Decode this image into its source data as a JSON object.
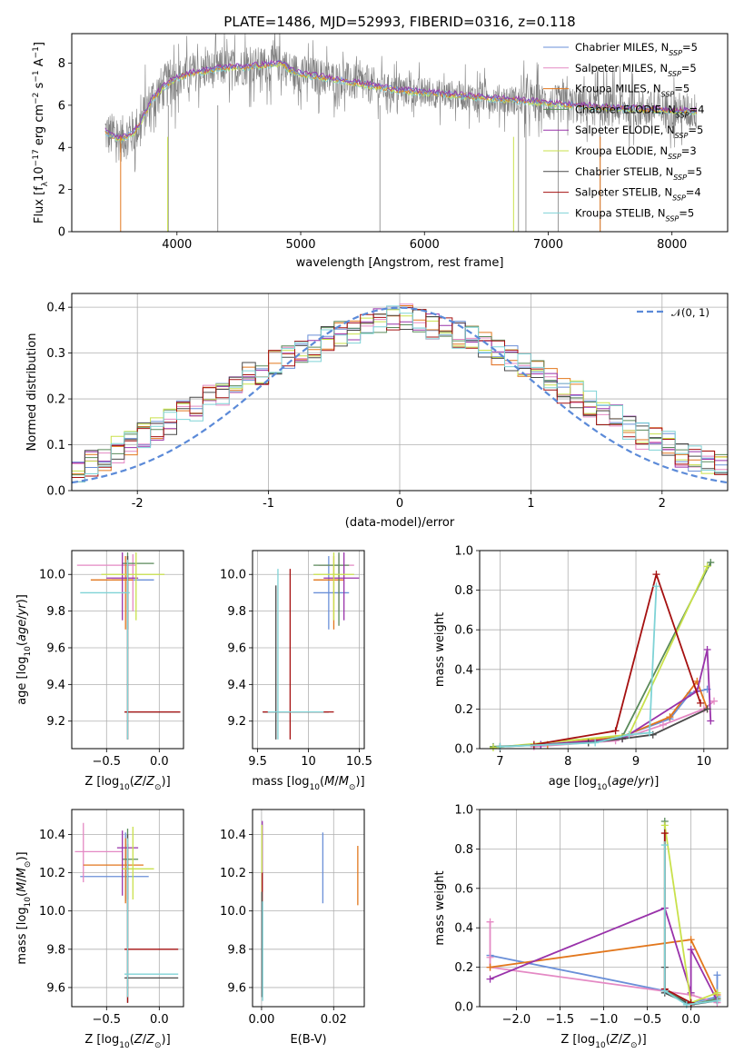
{
  "colors": {
    "chabrier_miles": "#6a8fd8",
    "salpeter_miles": "#e489c4",
    "kroupa_miles": "#e2771d",
    "chabrier_elodie": "#5a8a5a",
    "salpeter_elodie": "#9932aa",
    "kroupa_elodie": "#c9e14b",
    "chabrier_stelib": "#4a4a4a",
    "salpeter_stelib": "#a51010",
    "kroupa_stelib": "#7fd3d6",
    "data": "#7f7f7f",
    "gaussian": "#5b8ad8"
  },
  "chart_data": [
    {
      "id": "spectrum",
      "type": "line",
      "title": "PLATE=1486, MJD=52993, FIBERID=0316, z=0.118",
      "xlabel": "wavelength [Angstrom, rest frame]",
      "ylabel": "Flux [f_λ 10^-17 erg cm^-2 s^-1 A^-1]",
      "xlim": [
        3150,
        8450
      ],
      "ylim": [
        0,
        9.4
      ],
      "xticks": [
        4000,
        5000,
        6000,
        7000,
        8000
      ],
      "yticks": [
        0,
        2,
        4,
        6,
        8
      ],
      "grid": false,
      "legend_position": "top-right",
      "legend": [
        {
          "label": "Chabrier MILES, N_SSP=5",
          "color": "#6a8fd8"
        },
        {
          "label": "Salpeter MILES, N_SSP=5",
          "color": "#e489c4"
        },
        {
          "label": "Kroupa MILES, N_SSP=5",
          "color": "#e2771d"
        },
        {
          "label": "Chabrier ELODIE, N_SSP=4",
          "color": "#5a8a5a"
        },
        {
          "label": "Salpeter ELODIE, N_SSP=5",
          "color": "#9932aa"
        },
        {
          "label": "Kroupa ELODIE, N_SSP=3",
          "color": "#c9e14b"
        },
        {
          "label": "Chabrier STELIB, N_SSP=5",
          "color": "#4a4a4a"
        },
        {
          "label": "Salpeter STELIB, N_SSP=4",
          "color": "#a51010"
        },
        {
          "label": "Kroupa STELIB, N_SSP=5",
          "color": "#7fd3d6"
        }
      ],
      "model_continuum": {
        "x": [
          3400,
          3450,
          3550,
          3650,
          3700,
          3800,
          3900,
          4000,
          4100,
          4200,
          4400,
          4500,
          4700,
          4850,
          4900,
          5000,
          5200,
          5400,
          5600,
          5800,
          6000,
          6200,
          6400,
          6600,
          6800,
          7000,
          7200,
          7400,
          7600,
          7800,
          8000,
          8200
        ],
        "y": [
          4.9,
          4.6,
          4.4,
          4.7,
          5.1,
          6.3,
          6.9,
          7.3,
          7.5,
          7.6,
          7.8,
          7.8,
          7.9,
          8.0,
          7.7,
          7.5,
          7.3,
          7.1,
          6.9,
          6.7,
          6.6,
          6.5,
          6.4,
          6.3,
          6.2,
          6.1,
          6.0,
          5.9,
          5.85,
          5.8,
          5.75,
          5.7
        ]
      }
    },
    {
      "id": "residuals",
      "type": "histogram",
      "xlabel": "(data-model)/error",
      "ylabel": "Normed distribution",
      "xlim": [
        -2.5,
        2.5
      ],
      "ylim": [
        0,
        0.43
      ],
      "xticks": [
        -2,
        -1,
        0,
        1,
        2
      ],
      "yticks": [
        0.0,
        0.1,
        0.2,
        0.3,
        0.4
      ],
      "grid": true,
      "legend": [
        {
          "label": "𝒩(0, 1)",
          "color": "#5b8ad8",
          "style": "dashed"
        }
      ],
      "legend_position": "top-right",
      "bin_width": 0.1,
      "bin_start": -2.5,
      "series_center": [
        0.045,
        0.06,
        0.07,
        0.09,
        0.1,
        0.12,
        0.14,
        0.15,
        0.17,
        0.18,
        0.2,
        0.21,
        0.23,
        0.25,
        0.26,
        0.28,
        0.29,
        0.3,
        0.31,
        0.33,
        0.34,
        0.35,
        0.36,
        0.37,
        0.38,
        0.38,
        0.37,
        0.36,
        0.35,
        0.34,
        0.33,
        0.32,
        0.3,
        0.29,
        0.27,
        0.26,
        0.24,
        0.22,
        0.21,
        0.19,
        0.17,
        0.16,
        0.14,
        0.12,
        0.11,
        0.1,
        0.08,
        0.07,
        0.06,
        0.05
      ]
    },
    {
      "id": "age-vs-Z",
      "type": "scatter",
      "xlabel": "Z [log10(Z/Z⊙)]",
      "ylabel": "age  [log10(age/yr)]",
      "xlim": [
        -0.83,
        0.23
      ],
      "ylim": [
        9.05,
        10.13
      ],
      "xticks": [
        -0.5,
        0.0
      ],
      "xticklabels": [
        "−0.5",
        "0.0"
      ],
      "yticks": [
        9.2,
        9.4,
        9.6,
        9.8,
        10.0
      ],
      "grid": true,
      "points": [
        {
          "x": -0.3,
          "y": 9.97,
          "xlo": -0.45,
          "xhi": -0.05,
          "ylo": 9.7,
          "yhi": 10.1,
          "color": "#6a8fd8"
        },
        {
          "x": -0.25,
          "y": 10.05,
          "xlo": -0.78,
          "xhi": -0.22,
          "ylo": 9.8,
          "yhi": 10.11,
          "color": "#e489c4"
        },
        {
          "x": -0.32,
          "y": 9.97,
          "xlo": -0.65,
          "xhi": -0.25,
          "ylo": 9.7,
          "yhi": 10.1,
          "color": "#e2771d"
        },
        {
          "x": -0.3,
          "y": 10.06,
          "xlo": -0.35,
          "xhi": -0.05,
          "ylo": 9.7,
          "yhi": 10.12,
          "color": "#5a8a5a"
        },
        {
          "x": -0.35,
          "y": 9.98,
          "xlo": -0.5,
          "xhi": -0.2,
          "ylo": 9.75,
          "yhi": 10.12,
          "color": "#9932aa"
        },
        {
          "x": -0.22,
          "y": 10.0,
          "xlo": -0.55,
          "xhi": 0.05,
          "ylo": 9.75,
          "yhi": 10.12,
          "color": "#c9e14b"
        },
        {
          "x": -0.3,
          "y": 9.25,
          "xlo": -0.33,
          "xhi": 0.2,
          "ylo": 9.1,
          "yhi": 10.1,
          "color": "#4a4a4a"
        },
        {
          "x": -0.3,
          "y": 9.25,
          "xlo": -0.33,
          "xhi": 0.2,
          "ylo": 9.1,
          "yhi": 10.05,
          "color": "#a51010"
        },
        {
          "x": -0.3,
          "y": 9.9,
          "xlo": -0.75,
          "xhi": -0.28,
          "ylo": 9.1,
          "yhi": 10.08,
          "color": "#7fd3d6"
        }
      ]
    },
    {
      "id": "age-vs-mass",
      "type": "scatter",
      "xlabel": "mass [log10(M/M⊙)]",
      "ylabel": "",
      "xlim": [
        9.45,
        10.55
      ],
      "ylim": [
        9.05,
        10.13
      ],
      "xticks": [
        9.5,
        10.0,
        10.5
      ],
      "yticks": [
        9.2,
        9.4,
        9.6,
        9.8,
        10.0
      ],
      "grid": true,
      "points": [
        {
          "x": 10.2,
          "y": 9.9,
          "xlo": 10.05,
          "xhi": 10.4,
          "ylo": 9.7,
          "yhi": 10.1,
          "color": "#6a8fd8"
        },
        {
          "x": 10.3,
          "y": 10.05,
          "xlo": 10.1,
          "xhi": 10.45,
          "ylo": 9.8,
          "yhi": 10.11,
          "color": "#e489c4"
        },
        {
          "x": 10.25,
          "y": 9.97,
          "xlo": 10.05,
          "xhi": 10.35,
          "ylo": 9.7,
          "yhi": 10.1,
          "color": "#e2771d"
        },
        {
          "x": 10.3,
          "y": 10.05,
          "xlo": 10.05,
          "xhi": 10.4,
          "ylo": 9.72,
          "yhi": 10.12,
          "color": "#5a8a5a"
        },
        {
          "x": 10.35,
          "y": 9.98,
          "xlo": 10.15,
          "xhi": 10.5,
          "ylo": 9.75,
          "yhi": 10.12,
          "color": "#9932aa"
        },
        {
          "x": 10.25,
          "y": 10.0,
          "xlo": 10.05,
          "xhi": 10.45,
          "ylo": 9.75,
          "yhi": 10.12,
          "color": "#c9e14b"
        },
        {
          "x": 9.68,
          "y": 9.25,
          "xlo": 9.55,
          "xhi": 10.2,
          "ylo": 9.1,
          "yhi": 9.94,
          "color": "#4a4a4a"
        },
        {
          "x": 9.82,
          "y": 9.25,
          "xlo": 9.55,
          "xhi": 10.25,
          "ylo": 9.1,
          "yhi": 10.03,
          "color": "#a51010"
        },
        {
          "x": 9.7,
          "y": 9.25,
          "xlo": 9.6,
          "xhi": 10.15,
          "ylo": 9.1,
          "yhi": 10.03,
          "color": "#7fd3d6"
        }
      ]
    },
    {
      "id": "weight-vs-age",
      "type": "line",
      "xlabel": "age  [log10(age/yr)]",
      "ylabel": "mass weight",
      "xlim": [
        6.7,
        10.35
      ],
      "ylim": [
        0,
        1.0
      ],
      "xticks": [
        7,
        8,
        9,
        10
      ],
      "yticks": [
        0.0,
        0.2,
        0.4,
        0.6,
        0.8,
        1.0
      ],
      "grid": true,
      "series": [
        {
          "color": "#6a8fd8",
          "x": [
            7.6,
            8.7,
            9.5,
            9.8,
            10.05
          ],
          "y": [
            0.02,
            0.05,
            0.15,
            0.28,
            0.3
          ]
        },
        {
          "color": "#e489c4",
          "x": [
            7.5,
            8.7,
            9.4,
            10.0,
            10.15
          ],
          "y": [
            0.01,
            0.04,
            0.12,
            0.2,
            0.24
          ]
        },
        {
          "color": "#e2771d",
          "x": [
            7.7,
            8.8,
            9.5,
            9.9,
            10.05
          ],
          "y": [
            0.02,
            0.06,
            0.16,
            0.34,
            0.2
          ]
        },
        {
          "color": "#5a8a5a",
          "x": [
            6.9,
            8.3,
            8.8,
            10.1
          ],
          "y": [
            0.01,
            0.03,
            0.06,
            0.94
          ]
        },
        {
          "color": "#9932aa",
          "x": [
            7.6,
            8.8,
            9.9,
            10.05,
            10.1
          ],
          "y": [
            0.02,
            0.05,
            0.29,
            0.5,
            0.14
          ]
        },
        {
          "color": "#c9e14b",
          "x": [
            6.9,
            8.9,
            10.05
          ],
          "y": [
            0.005,
            0.07,
            0.92
          ]
        },
        {
          "color": "#4a4a4a",
          "x": [
            7.0,
            8.3,
            8.8,
            9.25,
            10.05
          ],
          "y": [
            0.01,
            0.03,
            0.05,
            0.07,
            0.2
          ]
        },
        {
          "color": "#a51010",
          "x": [
            7.5,
            8.7,
            9.3,
            9.95
          ],
          "y": [
            0.02,
            0.09,
            0.88,
            0.23
          ]
        },
        {
          "color": "#7fd3d6",
          "x": [
            7.0,
            8.4,
            8.9,
            9.2,
            9.3
          ],
          "y": [
            0.01,
            0.03,
            0.07,
            0.08,
            0.82
          ]
        }
      ]
    },
    {
      "id": "mass-vs-Z",
      "type": "scatter",
      "xlabel": "Z [log10(Z/Z⊙)]",
      "ylabel": "mass [log10(M/M⊙)]",
      "xlim": [
        -0.83,
        0.23
      ],
      "ylim": [
        9.5,
        10.53
      ],
      "xticks": [
        -0.5,
        0.0
      ],
      "xticklabels": [
        "−0.5",
        "0.0"
      ],
      "yticks": [
        9.6,
        9.8,
        10.0,
        10.2,
        10.4
      ],
      "grid": true,
      "points": [
        {
          "x": -0.32,
          "y": 10.18,
          "xlo": -0.75,
          "xhi": -0.1,
          "ylo": 10.05,
          "yhi": 10.41,
          "color": "#6a8fd8"
        },
        {
          "x": -0.72,
          "y": 10.31,
          "xlo": -0.8,
          "xhi": -0.35,
          "ylo": 10.15,
          "yhi": 10.46,
          "color": "#e489c4"
        },
        {
          "x": -0.32,
          "y": 10.24,
          "xlo": -0.72,
          "xhi": -0.15,
          "ylo": 10.04,
          "yhi": 10.38,
          "color": "#e2771d"
        },
        {
          "x": -0.3,
          "y": 10.27,
          "xlo": -0.35,
          "xhi": -0.2,
          "ylo": 10.06,
          "yhi": 10.43,
          "color": "#5a8a5a"
        },
        {
          "x": -0.35,
          "y": 10.33,
          "xlo": -0.4,
          "xhi": -0.2,
          "ylo": 10.08,
          "yhi": 10.42,
          "color": "#9932aa"
        },
        {
          "x": -0.25,
          "y": 10.22,
          "xlo": -0.35,
          "xhi": -0.05,
          "ylo": 10.06,
          "yhi": 10.44,
          "color": "#c9e14b"
        },
        {
          "x": -0.3,
          "y": 9.65,
          "xlo": -0.33,
          "xhi": 0.18,
          "ylo": 9.52,
          "yhi": 10.4,
          "color": "#4a4a4a"
        },
        {
          "x": -0.3,
          "y": 9.8,
          "xlo": -0.33,
          "xhi": 0.18,
          "ylo": 9.52,
          "yhi": 10.35,
          "color": "#a51010"
        },
        {
          "x": -0.3,
          "y": 9.67,
          "xlo": -0.33,
          "xhi": 0.18,
          "ylo": 9.55,
          "yhi": 10.38,
          "color": "#7fd3d6"
        }
      ]
    },
    {
      "id": "mass-vs-EBV",
      "type": "scatter",
      "xlabel": "E(B-V)",
      "ylabel": "",
      "xlim": [
        -0.0025,
        0.0285
      ],
      "ylim": [
        9.5,
        10.53
      ],
      "xticks": [
        0.0,
        0.02
      ],
      "xticklabels": [
        "0.00",
        "0.02"
      ],
      "yticks": [
        9.6,
        9.8,
        10.0,
        10.2,
        10.4
      ],
      "grid": true,
      "points": [
        {
          "x": 0.017,
          "y": 10.2,
          "ylo": 10.04,
          "yhi": 10.41,
          "color": "#6a8fd8"
        },
        {
          "x": 0.0267,
          "y": 10.18,
          "ylo": 10.03,
          "yhi": 10.34,
          "color": "#e2771d"
        },
        {
          "x": 0.0002,
          "y": 10.3,
          "ylo": 10.1,
          "yhi": 10.47,
          "color": "#9932aa"
        },
        {
          "x": 0.0001,
          "y": 10.25,
          "ylo": 10.05,
          "yhi": 10.45,
          "color": "#c9e14b"
        },
        {
          "x": 0.0002,
          "y": 10.1,
          "ylo": 10.0,
          "yhi": 10.2,
          "color": "#a51010"
        },
        {
          "x": 0.0001,
          "y": 9.8,
          "ylo": 9.55,
          "yhi": 10.1,
          "color": "#4a4a4a"
        },
        {
          "x": 0.0003,
          "y": 9.75,
          "ylo": 9.53,
          "yhi": 10.05,
          "color": "#7fd3d6"
        }
      ]
    },
    {
      "id": "weight-vs-Z",
      "type": "line",
      "xlabel": "Z [log10(Z/Z⊙)]",
      "ylabel": "mass weight",
      "xlim": [
        -2.42,
        0.42
      ],
      "ylim": [
        0,
        1.0
      ],
      "xticks": [
        -2.0,
        -1.5,
        -1.0,
        -0.5,
        0.0
      ],
      "xticklabels": [
        "−2.0",
        "−1.5",
        "−1.0",
        "−0.5",
        "0.0"
      ],
      "yticks": [
        0.0,
        0.2,
        0.4,
        0.6,
        0.8,
        1.0
      ],
      "grid": true,
      "series": [
        {
          "color": "#6a8fd8",
          "x": [
            -2.3,
            -0.3,
            0.0,
            0.3,
            0.3
          ],
          "y": [
            0.26,
            0.08,
            0.02,
            0.05,
            0.16
          ]
        },
        {
          "color": "#e489c4",
          "x": [
            -2.3,
            -2.3,
            -2.3,
            0.0,
            0.3
          ],
          "y": [
            0.43,
            0.25,
            0.2,
            0.06,
            0.02
          ]
        },
        {
          "color": "#e2771d",
          "x": [
            -2.3,
            0.0,
            0.3
          ],
          "y": [
            0.2,
            0.34,
            0.06
          ]
        },
        {
          "color": "#5a8a5a",
          "x": [
            -0.3,
            -0.3,
            0.0,
            0.3
          ],
          "y": [
            0.94,
            0.08,
            0.01,
            0.04
          ]
        },
        {
          "color": "#9932aa",
          "x": [
            -2.3,
            -0.3,
            0.0,
            0.0,
            0.3
          ],
          "y": [
            0.14,
            0.5,
            0.07,
            0.29,
            0.03
          ]
        },
        {
          "color": "#c9e14b",
          "x": [
            -0.3,
            0.0,
            0.3
          ],
          "y": [
            0.92,
            0.02,
            0.07
          ]
        },
        {
          "color": "#4a4a4a",
          "x": [
            -0.3,
            -0.3,
            0.0,
            0.3
          ],
          "y": [
            0.2,
            0.07,
            0.01,
            0.03
          ]
        },
        {
          "color": "#a51010",
          "x": [
            -0.3,
            -0.3,
            0.0
          ],
          "y": [
            0.88,
            0.09,
            0.02
          ]
        },
        {
          "color": "#7fd3d6",
          "x": [
            -0.3,
            -0.3,
            -0.05,
            0.3
          ],
          "y": [
            0.82,
            0.08,
            0.01,
            0.03
          ]
        }
      ]
    }
  ]
}
